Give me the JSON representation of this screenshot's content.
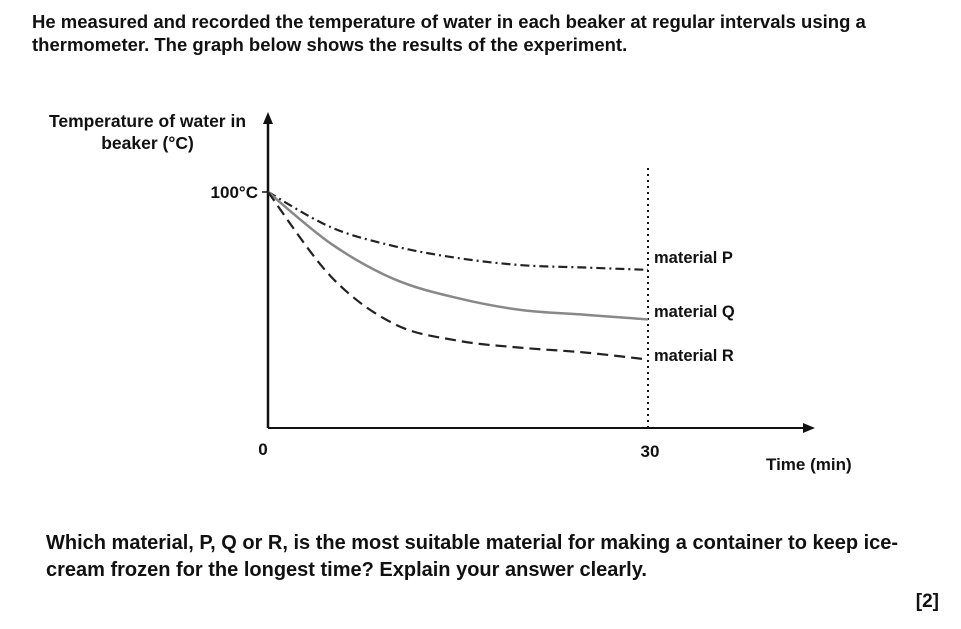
{
  "intro_text": "He measured and recorded the temperature of water in each beaker at regular intervals using a thermometer. The graph below shows the results of the experiment.",
  "question_text": "Which material, P, Q or R, is the most suitable material for making a container to keep ice-cream frozen for the longest time? Explain your answer clearly.",
  "marks_label": "[2]",
  "chart_data": {
    "type": "line",
    "ylabel": "Temperature of water in beaker (°C)",
    "xlabel": "Time (min)",
    "x_ticks": [
      "0",
      "30"
    ],
    "y_ticks": [
      "100°C"
    ],
    "xlim": [
      0,
      37
    ],
    "ylim": [
      0,
      100
    ],
    "grid": false,
    "series": [
      {
        "name": "material P",
        "line_style": "dash-dot",
        "color": "#222222",
        "x": [
          0,
          5,
          10,
          15,
          20,
          25,
          30
        ],
        "y": [
          100,
          85,
          77,
          72,
          69,
          68,
          67
        ]
      },
      {
        "name": "material Q",
        "line_style": "solid",
        "color": "#888888",
        "x": [
          0,
          5,
          10,
          15,
          20,
          25,
          30
        ],
        "y": [
          100,
          78,
          63,
          55,
          50,
          48,
          46
        ]
      },
      {
        "name": "material R",
        "line_style": "dashed",
        "color": "#222222",
        "x": [
          0,
          5,
          10,
          15,
          20,
          25,
          30
        ],
        "y": [
          100,
          64,
          44,
          37,
          34,
          32,
          29
        ]
      }
    ]
  }
}
